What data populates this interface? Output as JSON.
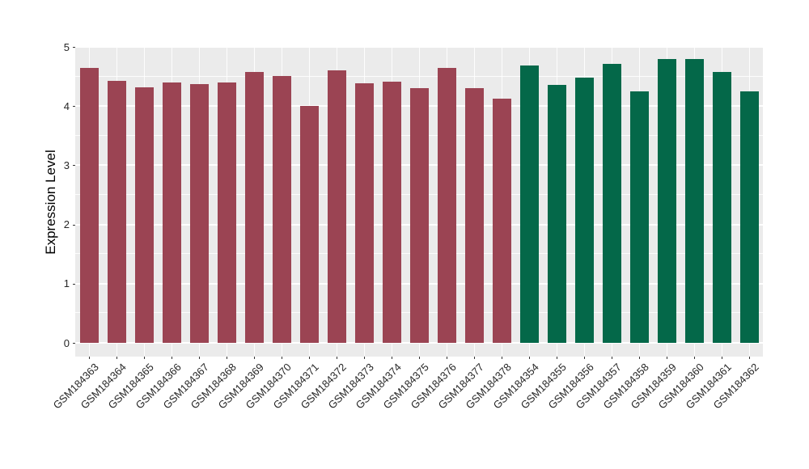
{
  "chart_data": {
    "type": "bar",
    "title": "",
    "xlabel": "",
    "ylabel": "Expression Level",
    "ylim": [
      0,
      5
    ],
    "yticks": [
      "0",
      "1",
      "2",
      "3",
      "4",
      "5"
    ],
    "minor_tick_step": 0.5,
    "grid": "major and minor horizontal white gridlines plus vertical white gridlines at each bar center, ggplot-style gray panel",
    "legend_position": "none",
    "categories": [
      "GSM184363",
      "GSM184364",
      "GSM184365",
      "GSM184366",
      "GSM184367",
      "GSM184368",
      "GSM184369",
      "GSM184370",
      "GSM184371",
      "GSM184372",
      "GSM184373",
      "GSM184374",
      "GSM184375",
      "GSM184376",
      "GSM184377",
      "GSM184378",
      "GSM184354",
      "GSM184355",
      "GSM184356",
      "GSM184357",
      "GSM184358",
      "GSM184359",
      "GSM184360",
      "GSM184361",
      "GSM184362"
    ],
    "values": [
      4.65,
      4.42,
      4.32,
      4.4,
      4.37,
      4.4,
      4.58,
      4.51,
      4.0,
      4.61,
      4.39,
      4.41,
      4.3,
      4.64,
      4.3,
      4.12,
      4.68,
      4.36,
      4.48,
      4.71,
      4.25,
      4.79,
      4.79,
      4.57,
      4.25
    ],
    "bar_group_of_each": [
      0,
      0,
      0,
      0,
      0,
      0,
      0,
      0,
      0,
      0,
      0,
      0,
      0,
      0,
      0,
      0,
      1,
      1,
      1,
      1,
      1,
      1,
      1,
      1,
      1
    ],
    "bar_groups": [
      {
        "name": "GSM184363-GSM184378",
        "color": "#9B4453"
      },
      {
        "name": "GSM184354-GSM184362",
        "color": "#046849"
      }
    ]
  },
  "colors": {
    "page_background": "#FFFFFF",
    "panel_background": "#EBEBEB",
    "gridline": "#FFFFFF",
    "axis_text": "#262626",
    "tick_mark": "#333333"
  }
}
